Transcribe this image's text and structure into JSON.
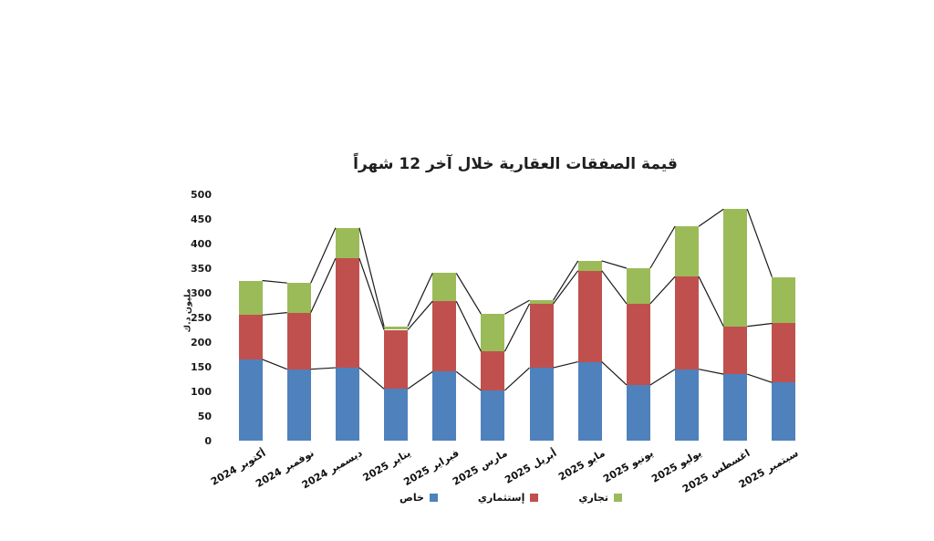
{
  "title": "قيمة الصفقات العقارية خلال آخر 12 شهراً",
  "chart_data": {
    "type": "bar",
    "stacked": true,
    "title": "قيمة الصفقات العقارية خلال آخر 12 شهراً",
    "categories": [
      "أكتوبر 2024",
      "نوفمبر 2024",
      "ديسمبر 2024",
      "يناير 2025",
      "فبراير 2025",
      "مارس 2025",
      "أبريل 2025",
      "مايو 2025",
      "يونيو 2025",
      "يوليو 2025",
      "اغسطس 2025",
      "سبتمبر 2025"
    ],
    "series": [
      {
        "name": "خاص",
        "color": "#4f81bd",
        "values": [
          165,
          145,
          148,
          105,
          140,
          102,
          148,
          160,
          113,
          145,
          135,
          118
        ]
      },
      {
        "name": "إستثماري",
        "color": "#c0504d",
        "values": [
          90,
          115,
          222,
          120,
          143,
          79,
          130,
          185,
          165,
          188,
          97,
          120
        ]
      },
      {
        "name": "تجاري",
        "color": "#9bbb59",
        "values": [
          70,
          60,
          62,
          7,
          57,
          76,
          7,
          20,
          72,
          102,
          238,
          94
        ]
      }
    ],
    "totals": [
      325,
      320,
      432,
      232,
      340,
      257,
      285,
      365,
      350,
      435,
      470,
      332
    ],
    "xlabel": "",
    "ylabel": "مليون د.ك",
    "ylim": [
      0,
      500
    ],
    "ytick_step": 50,
    "grid": false,
    "series_lines": true,
    "series_line_color": "#1a1a1a",
    "legend_position": "bottom",
    "background": "#ffffff"
  },
  "legend": {
    "items": [
      {
        "label": "خاص",
        "color": "#4f81bd"
      },
      {
        "label": "إستثماري",
        "color": "#c0504d"
      },
      {
        "label": "تجاري",
        "color": "#9bbb59"
      }
    ]
  }
}
